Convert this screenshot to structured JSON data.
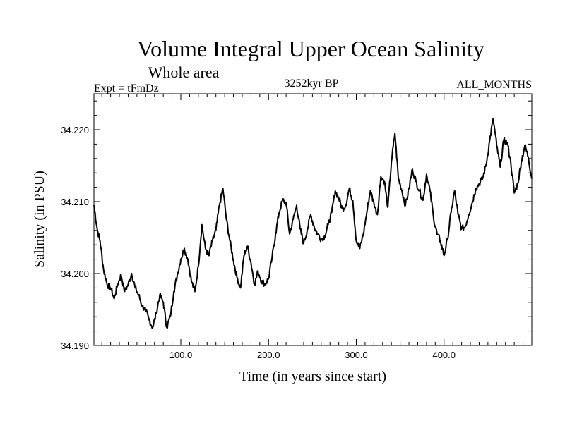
{
  "chart_data": {
    "type": "line",
    "title": "Volume Integral Upper Ocean Salinity",
    "subtitle": "Whole area",
    "experiment": "Expt = tFmDz",
    "period": "3252kyr BP",
    "months": "ALL_MONTHS",
    "xlabel": "Time (in years since start)",
    "ylabel": "Salinity (in PSU)",
    "xlim": [
      1,
      500
    ],
    "ylim": [
      34.19,
      34.225
    ],
    "x_ticks": [
      100,
      200,
      300,
      400
    ],
    "x_tick_labels": [
      "100.0",
      "200.0",
      "300.0",
      "400.0"
    ],
    "y_ticks": [
      34.19,
      34.2,
      34.21,
      34.22
    ],
    "y_tick_labels": [
      "34.190",
      "34.200",
      "34.210",
      "34.220"
    ],
    "series": [
      {
        "name": "salinity",
        "color": "#000000",
        "x": [
          1,
          5,
          8,
          12,
          16,
          20,
          24,
          28,
          32,
          36,
          40,
          44,
          48,
          52,
          56,
          60,
          64,
          68,
          72,
          76,
          80,
          84,
          88,
          92,
          96,
          100,
          104,
          108,
          112,
          116,
          120,
          124,
          128,
          132,
          136,
          140,
          144,
          148,
          152,
          156,
          160,
          164,
          168,
          172,
          176,
          180,
          184,
          188,
          192,
          196,
          200,
          204,
          208,
          212,
          216,
          220,
          224,
          228,
          232,
          236,
          240,
          244,
          248,
          252,
          256,
          260,
          264,
          268,
          272,
          276,
          280,
          284,
          288,
          292,
          296,
          300,
          304,
          308,
          312,
          316,
          320,
          324,
          328,
          332,
          336,
          340,
          344,
          348,
          352,
          356,
          360,
          364,
          368,
          372,
          376,
          380,
          384,
          388,
          392,
          396,
          400,
          404,
          408,
          412,
          416,
          420,
          424,
          428,
          432,
          436,
          440,
          444,
          448,
          452,
          456,
          460,
          464,
          468,
          472,
          476,
          480,
          484,
          488,
          492,
          496,
          500
        ],
        "values": [
          34.2095,
          34.206,
          34.2045,
          34.2005,
          34.1985,
          34.198,
          34.1965,
          34.1985,
          34.1998,
          34.1975,
          34.1985,
          34.2,
          34.198,
          34.197,
          34.1955,
          34.1948,
          34.1935,
          34.1925,
          34.1945,
          34.197,
          34.196,
          34.1925,
          34.194,
          34.1975,
          34.1998,
          34.202,
          34.2035,
          34.202,
          34.199,
          34.1975,
          34.201,
          34.2068,
          34.2035,
          34.2025,
          34.2045,
          34.206,
          34.2095,
          34.2118,
          34.2075,
          34.2045,
          34.2018,
          34.1995,
          34.198,
          34.2025,
          34.2038,
          34.2015,
          34.1985,
          34.2003,
          34.199,
          34.1985,
          34.1993,
          34.2022,
          34.2055,
          34.2085,
          34.2102,
          34.2098,
          34.2055,
          34.2075,
          34.2095,
          34.2062,
          34.2042,
          34.206,
          34.2082,
          34.2065,
          34.2055,
          34.2048,
          34.2052,
          34.2068,
          34.2085,
          34.2115,
          34.2105,
          34.209,
          34.2095,
          34.2118,
          34.2102,
          34.2045,
          34.2035,
          34.2055,
          34.2085,
          34.2115,
          34.2098,
          34.2082,
          34.2135,
          34.2128,
          34.2092,
          34.2155,
          34.2195,
          34.2132,
          34.2115,
          34.2095,
          34.2118,
          34.2145,
          34.2128,
          34.2115,
          34.2102,
          34.2138,
          34.2115,
          34.2078,
          34.2055,
          34.2045,
          34.2025,
          34.2048,
          34.2085,
          34.2115,
          34.2082,
          34.2062,
          34.2065,
          34.2082,
          34.2098,
          34.2118,
          34.2125,
          34.2132,
          34.2152,
          34.2185,
          34.2215,
          34.2178,
          34.2148,
          34.2185,
          34.2182,
          34.2155,
          34.2112,
          34.2125,
          34.2155,
          34.2178,
          34.2162,
          34.2132
        ]
      }
    ]
  }
}
